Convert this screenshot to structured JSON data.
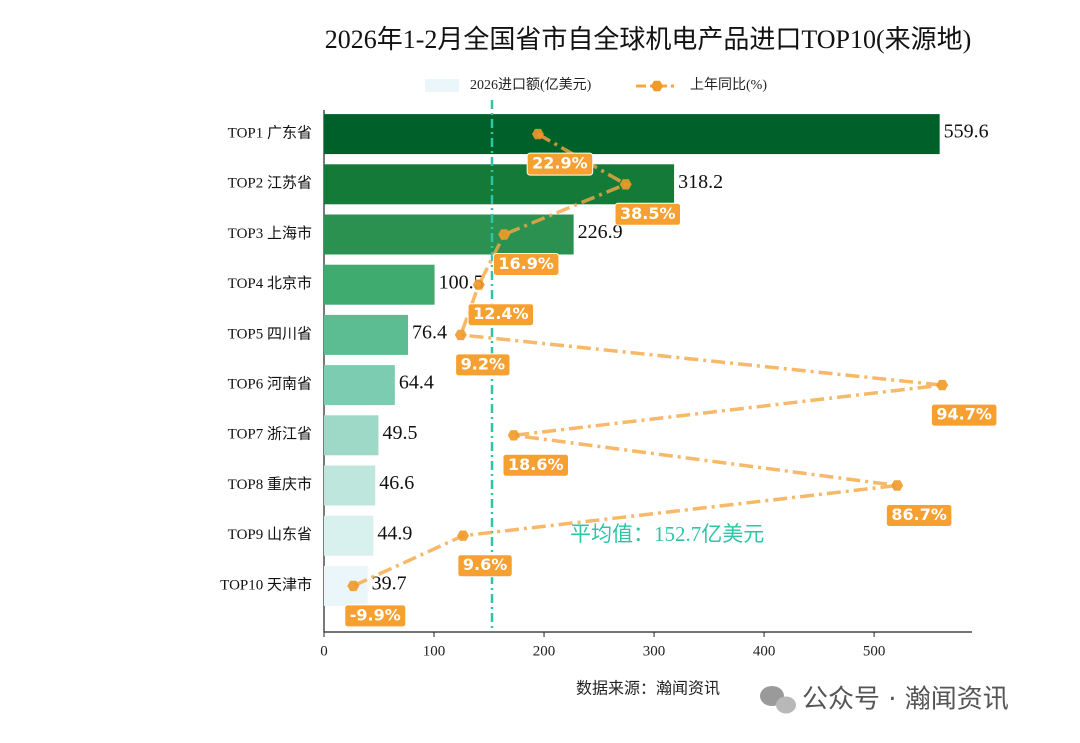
{
  "chart_data": {
    "type": "bar",
    "orientation": "horizontal",
    "title": "2026年1-2月全国省市自全球机电产品进口TOP10(来源地)",
    "categories": [
      "TOP1 广东省",
      "TOP2 江苏省",
      "TOP3 上海市",
      "TOP4 北京市",
      "TOP5 四川省",
      "TOP6 河南省",
      "TOP7 浙江省",
      "TOP8 重庆市",
      "TOP9 山东省",
      "TOP10 天津市"
    ],
    "series": [
      {
        "name": "2026进口额(亿美元)",
        "values": [
          559.6,
          318.2,
          226.9,
          100.5,
          76.4,
          64.4,
          49.5,
          46.6,
          44.9,
          39.7
        ],
        "colors": [
          "#00602a",
          "#137a38",
          "#2a9150",
          "#40ab6e",
          "#5bbd91",
          "#7bccb0",
          "#9ed9c7",
          "#bee6dc",
          "#d8f0ee",
          "#eaf6f9"
        ],
        "color": "#eaf6f9"
      },
      {
        "name": "上年同比(%)",
        "axis": "x2",
        "color": "#f5a742",
        "values": [
          22.9,
          38.5,
          16.9,
          12.4,
          9.2,
          94.7,
          18.6,
          86.7,
          9.6,
          -9.9
        ],
        "value_labels": [
          "22.9%",
          "38.5%",
          "16.9%",
          "12.4%",
          "9.2%",
          "94.7%",
          "18.6%",
          "86.7%",
          "9.6%",
          "-9.9%"
        ]
      }
    ],
    "xlim": [
      0,
      589
    ],
    "xticks": [
      0,
      100,
      200,
      300,
      400,
      500
    ],
    "x2lim": [
      -15.1,
      100
    ],
    "average": {
      "value": 152.7,
      "label": "平均值：152.7亿美元",
      "color": "#2ec4a6"
    },
    "source": "数据来源：瀚闻资讯",
    "watermark": "公众号 · 瀚闻资讯"
  }
}
